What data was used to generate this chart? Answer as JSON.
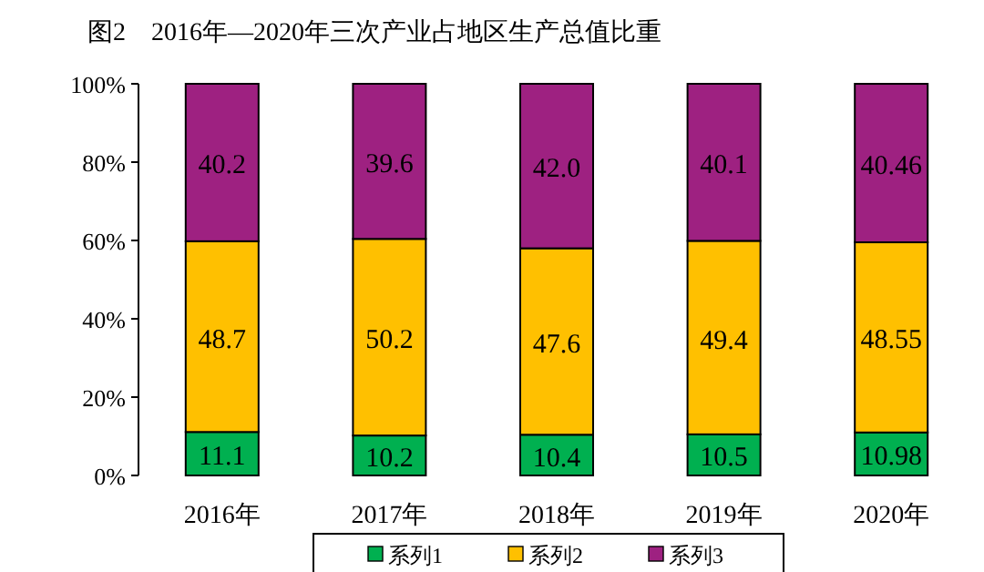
{
  "chart_data": {
    "type": "bar",
    "stacked": true,
    "title": "图2　2016年—2020年三次产业占地区生产总值比重",
    "categories": [
      "2016年",
      "2017年",
      "2018年",
      "2019年",
      "2020年"
    ],
    "series": [
      {
        "name": "系列1",
        "color": "#00b050",
        "values": [
          11.1,
          10.2,
          10.4,
          10.5,
          10.98
        ],
        "value_labels": [
          "11.1",
          "10.2",
          "10.4",
          "10.5",
          "10.98"
        ]
      },
      {
        "name": "系列2",
        "color": "#ffc000",
        "values": [
          48.7,
          50.2,
          47.6,
          49.4,
          48.55
        ],
        "value_labels": [
          "48.7",
          "50.2",
          "47.6",
          "49.4",
          "48.55"
        ]
      },
      {
        "name": "系列3",
        "color": "#9e2181",
        "values": [
          40.2,
          39.6,
          42.0,
          40.1,
          40.46
        ],
        "value_labels": [
          "40.2",
          "39.6",
          "42.0",
          "40.1",
          "40.46"
        ]
      }
    ],
    "ylim": [
      0,
      100
    ],
    "yticks": [
      {
        "value": 0,
        "label": "0%"
      },
      {
        "value": 20,
        "label": "20%"
      },
      {
        "value": 40,
        "label": "40%"
      },
      {
        "value": 60,
        "label": "60%"
      },
      {
        "value": 80,
        "label": "80%"
      },
      {
        "value": 100,
        "label": "100%"
      }
    ],
    "grid": false,
    "legend": "bottom"
  }
}
